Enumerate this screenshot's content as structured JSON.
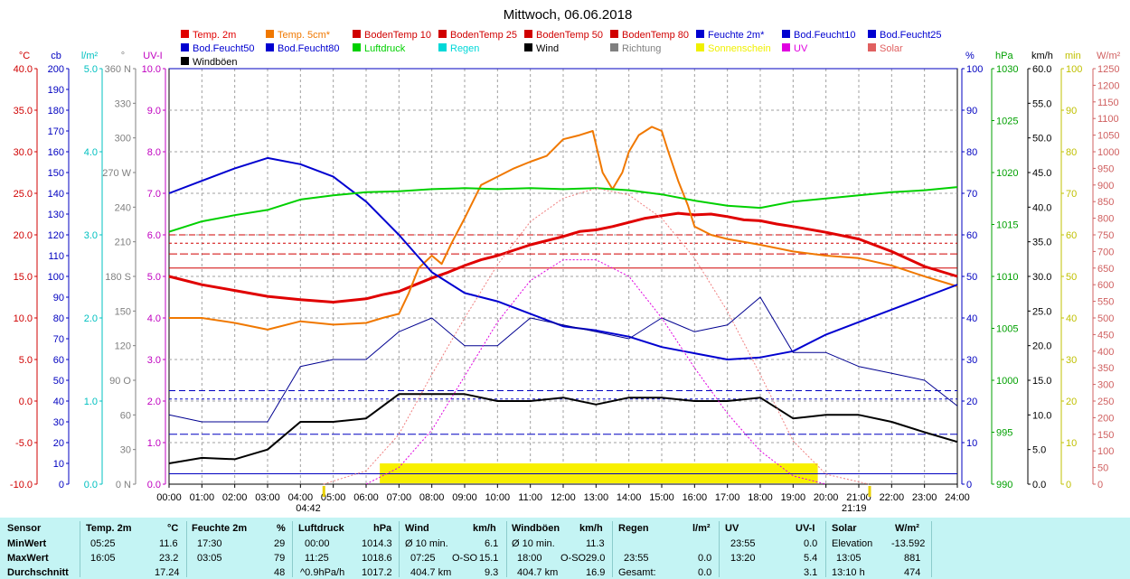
{
  "chart_data": {
    "type": "line",
    "title": "Mittwoch, 06.06.2018",
    "x_ticks": [
      "00:00",
      "01:00",
      "02:00",
      "03:00",
      "04:00",
      "05:00",
      "06:00",
      "07:00",
      "08:00",
      "09:00",
      "10:00",
      "11:00",
      "12:00",
      "13:00",
      "14:00",
      "15:00",
      "16:00",
      "17:00",
      "18:00",
      "19:00",
      "20:00",
      "21:00",
      "22:00",
      "23:00",
      "24:00"
    ],
    "sunrise_label": "04:42",
    "sunset_label": "21:19",
    "sunshine_window": [
      "06:25",
      "19:45"
    ],
    "legend": [
      {
        "name": "Temp. 2m",
        "color": "#e00000"
      },
      {
        "name": "Temp. 5cm*",
        "color": "#f07800"
      },
      {
        "name": "BodenTemp 10",
        "color": "#d00000"
      },
      {
        "name": "BodenTemp 25",
        "color": "#d00000"
      },
      {
        "name": "BodenTemp 50",
        "color": "#d00000"
      },
      {
        "name": "BodenTemp 80",
        "color": "#d00000"
      },
      {
        "name": "Feuchte 2m*",
        "color": "#0000d0"
      },
      {
        "name": "Bod.Feucht10",
        "color": "#0000d0"
      },
      {
        "name": "Bod.Feucht25",
        "color": "#0000d0"
      },
      {
        "name": "Bod.Feucht50",
        "color": "#0000d0"
      },
      {
        "name": "Bod.Feucht80",
        "color": "#0000d0"
      },
      {
        "name": "Luftdruck",
        "color": "#00d000"
      },
      {
        "name": "Regen",
        "color": "#00d8d8"
      },
      {
        "name": "Wind",
        "color": "#000000"
      },
      {
        "name": "Richtung",
        "color": "#808080"
      },
      {
        "name": "Sonnenschein",
        "color": "#f0f000"
      },
      {
        "name": "UV",
        "color": "#e000e0"
      },
      {
        "name": "Solar",
        "color": "#e06060"
      },
      {
        "name": "Windböen",
        "color": "#000000"
      }
    ],
    "axes": [
      {
        "id": "temp",
        "label": "°C",
        "color": "#d00000",
        "min": -10,
        "max": 40,
        "ticks": [
          "40.0",
          "35.0",
          "30.0",
          "25.0",
          "20.0",
          "15.0",
          "10.0",
          "5.0",
          "0.0",
          "-5.0",
          "-10.0"
        ]
      },
      {
        "id": "cb",
        "label": "cb",
        "color": "#0000c0",
        "min": 0,
        "max": 200,
        "ticks": [
          "200",
          "190",
          "180",
          "170",
          "160",
          "150",
          "140",
          "130",
          "120",
          "110",
          "100",
          "90",
          "80",
          "70",
          "60",
          "50",
          "40",
          "30",
          "20",
          "10",
          "0"
        ]
      },
      {
        "id": "rain",
        "label": "l/m²",
        "color": "#00c0c0",
        "min": 0,
        "max": 5,
        "ticks": [
          "5.0",
          "4.0",
          "3.0",
          "2.0",
          "1.0",
          "0.0"
        ]
      },
      {
        "id": "dir",
        "label": "°",
        "color": "#808080",
        "min": 0,
        "max": 360,
        "ticks": [
          "360 N",
          "330",
          "300",
          "270 W",
          "240",
          "210",
          "180 S",
          "150",
          "120",
          "90 O",
          "60",
          "30",
          "0 N"
        ]
      },
      {
        "id": "uvi",
        "label": "UV-I",
        "color": "#c000c0",
        "min": 0,
        "max": 10,
        "ticks": [
          "10.0",
          "9.0",
          "8.0",
          "7.0",
          "6.0",
          "5.0",
          "4.0",
          "3.0",
          "2.0",
          "1.0",
          "0.0"
        ]
      },
      {
        "id": "hum",
        "label": "%",
        "color": "#0000c0",
        "min": 0,
        "max": 100,
        "ticks": [
          "100",
          "90",
          "80",
          "70",
          "60",
          "50",
          "40",
          "30",
          "20",
          "10",
          "0"
        ]
      },
      {
        "id": "press",
        "label": "hPa",
        "color": "#00a000",
        "min": 990,
        "max": 1030,
        "ticks": [
          "1030",
          "1025",
          "1020",
          "1015",
          "1010",
          "1005",
          "1000",
          "995",
          "990"
        ]
      },
      {
        "id": "wind",
        "label": "km/h",
        "color": "#000000",
        "min": 0,
        "max": 60,
        "ticks": [
          "60.0",
          "55.0",
          "50.0",
          "45.0",
          "40.0",
          "35.0",
          "30.0",
          "25.0",
          "20.0",
          "15.0",
          "10.0",
          "5.0",
          "0.0"
        ]
      },
      {
        "id": "min",
        "label": "min",
        "color": "#c0c000",
        "min": 0,
        "max": 100,
        "ticks": [
          "100",
          "90",
          "80",
          "70",
          "60",
          "50",
          "40",
          "30",
          "20",
          "10",
          "0"
        ]
      },
      {
        "id": "solar",
        "label": "W/m²",
        "color": "#d06060",
        "min": 0,
        "max": 1250,
        "ticks": [
          "1250",
          "1200",
          "1150",
          "1100",
          "1050",
          "1000",
          "950",
          "900",
          "850",
          "800",
          "750",
          "700",
          "650",
          "600",
          "550",
          "500",
          "450",
          "400",
          "350",
          "300",
          "250",
          "200",
          "150",
          "100",
          "50",
          "0"
        ]
      }
    ],
    "series": [
      {
        "name": "Temp. 2m",
        "axis": "temp",
        "color": "#e00000",
        "width": 3,
        "x": [
          0,
          1,
          2,
          3,
          4,
          5,
          6,
          6.5,
          7,
          7.5,
          8,
          8.5,
          9,
          9.5,
          10,
          11,
          12,
          12.5,
          13,
          13.5,
          14,
          14.5,
          15,
          15.5,
          16,
          16.5,
          17,
          17.5,
          18,
          18.5,
          19,
          20,
          21,
          22,
          23,
          24
        ],
        "y": [
          15.0,
          14.0,
          13.3,
          12.6,
          12.2,
          11.9,
          12.3,
          12.8,
          13.2,
          14.0,
          14.8,
          15.5,
          16.3,
          17.0,
          17.5,
          18.8,
          19.8,
          20.4,
          20.6,
          21.0,
          21.5,
          22.0,
          22.3,
          22.6,
          22.4,
          22.5,
          22.2,
          21.8,
          21.7,
          21.3,
          21.0,
          20.3,
          19.5,
          18.0,
          16.2,
          15.0
        ]
      },
      {
        "name": "Temp. 5cm*",
        "axis": "temp",
        "color": "#f07800",
        "width": 2,
        "x": [
          0,
          1,
          2,
          3,
          4,
          5,
          6,
          6.5,
          7,
          7.3,
          7.6,
          8,
          8.3,
          8.6,
          9,
          9.5,
          10,
          10.5,
          11,
          11.5,
          12,
          12.5,
          12.9,
          13.2,
          13.5,
          13.8,
          14,
          14.3,
          14.7,
          15,
          15.2,
          15.5,
          15.8,
          16,
          16.5,
          17,
          18,
          19,
          20,
          21,
          22,
          23,
          24
        ],
        "y": [
          10.0,
          10.0,
          9.4,
          8.6,
          9.6,
          9.2,
          9.4,
          10.0,
          10.5,
          13.0,
          16.0,
          17.5,
          16.5,
          19.0,
          22.0,
          26.0,
          27.0,
          28.0,
          28.8,
          29.5,
          31.5,
          32.0,
          32.5,
          27.5,
          25.5,
          27.5,
          30.0,
          32.0,
          33.0,
          32.5,
          30.0,
          26.5,
          23.5,
          21.0,
          20.0,
          19.5,
          18.8,
          18.0,
          17.5,
          17.2,
          16.3,
          15.0,
          13.8
        ]
      },
      {
        "name": "Feuchte 2m*",
        "axis": "hum",
        "color": "#0000d0",
        "width": 2,
        "x": [
          0,
          1,
          2,
          3,
          4,
          5,
          6,
          7,
          8,
          9,
          10,
          11,
          12,
          13,
          14,
          15,
          16,
          17,
          18,
          19,
          20,
          21,
          22,
          23,
          24
        ],
        "y": [
          70,
          73,
          76,
          78.5,
          77,
          74,
          68,
          60,
          51,
          46,
          44,
          41,
          38,
          37,
          35.5,
          33,
          31.5,
          30,
          30.5,
          32,
          36,
          39,
          42,
          45,
          48
        ]
      },
      {
        "name": "Luftdruck",
        "axis": "press",
        "color": "#00d000",
        "width": 2,
        "x": [
          0,
          1,
          2,
          3,
          4,
          5,
          6,
          7,
          8,
          9,
          10,
          11,
          12,
          13,
          14,
          15,
          16,
          17,
          18,
          19,
          20,
          21,
          22,
          23,
          24
        ],
        "y": [
          1014.3,
          1015.3,
          1015.9,
          1016.4,
          1017.4,
          1017.8,
          1018.1,
          1018.2,
          1018.4,
          1018.5,
          1018.4,
          1018.5,
          1018.4,
          1018.5,
          1018.3,
          1017.9,
          1017.3,
          1016.8,
          1016.6,
          1017.2,
          1017.5,
          1017.8,
          1018.1,
          1018.3,
          1018.6
        ]
      },
      {
        "name": "Wind",
        "axis": "wind",
        "color": "#000000",
        "width": 2,
        "x": [
          0,
          1,
          2,
          3,
          4,
          5,
          6,
          7,
          8,
          9,
          10,
          11,
          12,
          13,
          14,
          15,
          16,
          17,
          18,
          19,
          20,
          21,
          22,
          23,
          24
        ],
        "y": [
          3.0,
          3.8,
          3.6,
          5.0,
          9.0,
          9.0,
          9.5,
          13.0,
          13.0,
          13.0,
          12.0,
          12.0,
          12.5,
          11.5,
          12.5,
          12.5,
          12.0,
          12.0,
          12.5,
          9.5,
          10.0,
          10.0,
          9.0,
          7.5,
          6.1
        ]
      },
      {
        "name": "Windböen",
        "axis": "wind",
        "color": "#000090",
        "width": 1,
        "x": [
          0,
          1,
          2,
          3,
          4,
          5,
          6,
          7,
          8,
          9,
          10,
          11,
          12,
          13,
          14,
          15,
          16,
          17,
          18,
          19,
          20,
          21,
          22,
          23,
          24
        ],
        "y": [
          10.0,
          9.0,
          9.0,
          9.0,
          17.0,
          18.0,
          18.0,
          22.0,
          24.0,
          20.0,
          20.0,
          24.0,
          23.0,
          22.0,
          21.0,
          24.0,
          22.0,
          23.0,
          27.0,
          19.0,
          19.0,
          17.0,
          16.0,
          15.0,
          11.3
        ]
      },
      {
        "name": "Solar",
        "axis": "solar",
        "color": "#f08080",
        "width": 1,
        "dash": "2,2",
        "x": [
          4.7,
          6,
          7,
          8,
          9,
          10,
          11,
          12,
          13,
          14,
          15,
          16,
          17,
          18,
          19,
          20,
          21.3
        ],
        "y": [
          0,
          40,
          150,
          330,
          500,
          660,
          790,
          860,
          890,
          870,
          800,
          680,
          520,
          330,
          130,
          30,
          0
        ]
      },
      {
        "name": "UV",
        "axis": "uvi",
        "color": "#e000e0",
        "width": 1,
        "dash": "2,2",
        "x": [
          6,
          7,
          8,
          9,
          10,
          11,
          12,
          13,
          14,
          15,
          16,
          17,
          18,
          19,
          20
        ],
        "y": [
          0,
          0.4,
          1.3,
          2.6,
          3.9,
          4.9,
          5.4,
          5.4,
          5.0,
          4.0,
          2.8,
          1.7,
          0.8,
          0.2,
          0
        ]
      }
    ],
    "soil_lines": [
      {
        "name": "BodenTemp 10",
        "axis": "temp",
        "y": 20.0,
        "dash": "7,4"
      },
      {
        "name": "BodenTemp 25",
        "axis": "temp",
        "y": 19.0,
        "dash": "3,3"
      },
      {
        "name": "BodenTemp 50",
        "axis": "temp",
        "y": 17.7,
        "dash": "9,3"
      },
      {
        "name": "BodenTemp 80",
        "axis": "temp",
        "y": 16.0,
        "dash": ""
      },
      {
        "name": "Bod.Feucht10",
        "axis": "hum",
        "y": 22.5,
        "dash": "7,4"
      },
      {
        "name": "Bod.Feucht25",
        "axis": "hum",
        "y": 20.5,
        "dash": "3,3"
      },
      {
        "name": "Bod.Feucht50",
        "axis": "hum",
        "y": 12.0,
        "dash": "9,3"
      },
      {
        "name": "Bod.Feucht80",
        "axis": "hum",
        "y": 2.5,
        "dash": ""
      },
      {
        "name": "Bod.Feucht 100",
        "axis": "hum",
        "y": 100,
        "dash": ""
      }
    ]
  },
  "table": {
    "row_labels": {
      "sensor": "Sensor",
      "min": "MinWert",
      "max": "MaxWert",
      "avg": "Durchschnitt"
    },
    "temp": {
      "title": "Temp. 2m",
      "unit": "°C",
      "min_time": "05:25",
      "min_val": "11.6",
      "max_time": "16:05",
      "max_val": "23.2",
      "avg_val": "17.24"
    },
    "hum": {
      "title": "Feuchte 2m",
      "unit": "%",
      "min_time": "17:30",
      "min_val": "29",
      "max_time": "03:05",
      "max_val": "79",
      "avg_val": "48"
    },
    "press": {
      "title": "Luftdruck",
      "unit": "hPa",
      "min_time": "00:00",
      "min_val": "1014.3",
      "max_time": "11:25",
      "max_val": "1018.6",
      "avg_time": "^0.9hPa/h",
      "avg_val": "1017.2"
    },
    "wind": {
      "title": "Wind",
      "unit": "km/h",
      "min_time": "Ø 10 min.",
      "min_val": "6.1",
      "max_time": "07:25",
      "max_dir": "O-SO",
      "max_val": "15.1",
      "avg_time": "404.7 km",
      "avg_val": "9.3"
    },
    "gust": {
      "title": "Windböen",
      "unit": "km/h",
      "min_time": "Ø 10 min.",
      "min_val": "11.3",
      "max_time": "18:00",
      "max_dir": "O-SO",
      "max_val": "29.0",
      "avg_time": "404.7 km",
      "avg_val": "16.9"
    },
    "rain": {
      "title": "Regen",
      "unit": "l/m²",
      "max_time": "23:55",
      "max_val": "0.0",
      "avg_time": "Gesamt:",
      "avg_val": "0.0"
    },
    "uv": {
      "title": "UV",
      "unit": "UV-I",
      "min_time": "23:55",
      "min_val": "0.0",
      "max_time": "13:20",
      "max_val": "5.4",
      "avg_val": "3.1"
    },
    "solar": {
      "title": "Solar",
      "unit": "W/m²",
      "min_time": "Elevation",
      "min_val": "-13.592",
      "max_time": "13:05",
      "max_val": "881",
      "avg_time": "13:10 h",
      "avg_val": "474"
    }
  }
}
